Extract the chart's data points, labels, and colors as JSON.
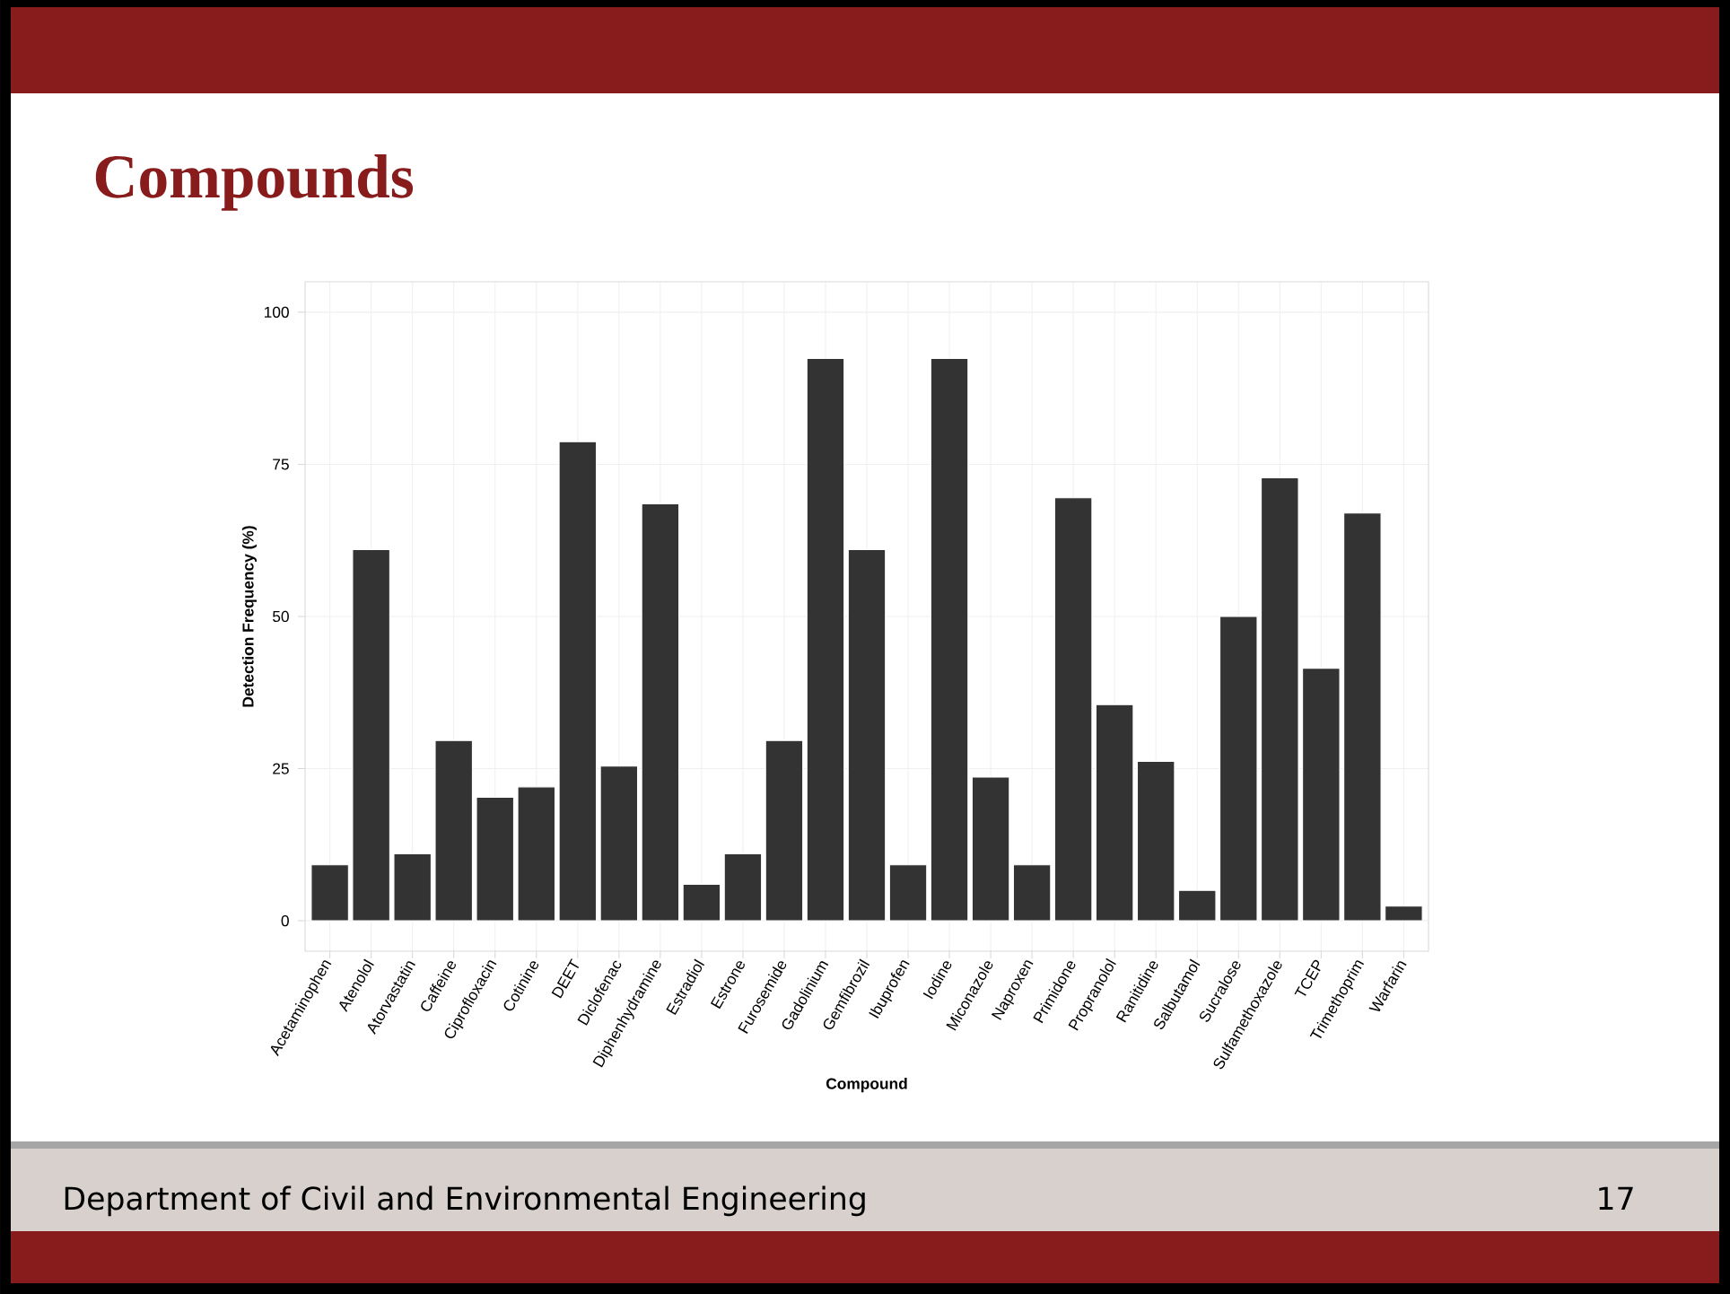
{
  "chart_data": {
    "type": "bar",
    "title": "Compounds",
    "xlabel": "Compound",
    "ylabel": "Detection Frequency (%)",
    "categories": [
      "Acetaminophen",
      "Atenolol",
      "Atorvastatin",
      "Caffeine",
      "Ciprofloxacin",
      "Cotinine",
      "DEET",
      "Diclofenac",
      "Diphenhydramine",
      "Estradiol",
      "Estrone",
      "Furosemide",
      "Gadolinium",
      "Gemfibrozil",
      "Ibuprofen",
      "Iodine",
      "Miconazole",
      "Naproxen",
      "Primidone",
      "Propranolol",
      "Ranitidine",
      "Salbutamol",
      "Sucralose",
      "Sulfamethoxazole",
      "TCEP",
      "Trimethoprim",
      "Warfarin"
    ],
    "values": [
      9.2,
      61,
      11,
      29.6,
      20.3,
      22,
      78.7,
      25.4,
      68.5,
      6,
      11,
      29.6,
      92.4,
      61,
      9.2,
      92.4,
      23.6,
      9.2,
      69.5,
      35.5,
      26.2,
      5,
      50,
      72.8,
      41.5,
      67,
      2.4
    ],
    "color": "#333333",
    "ylim": [
      -5,
      105
    ],
    "yticks": [
      0,
      25,
      50,
      75,
      100
    ],
    "grid": true,
    "annotations": [
      "Department of Civil and Environmental Engineering",
      "17"
    ]
  }
}
